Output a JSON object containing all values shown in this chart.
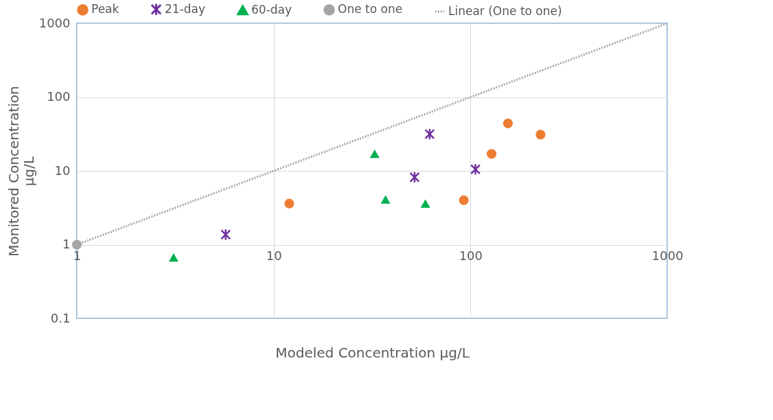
{
  "chart_data": {
    "type": "scatter",
    "xlabel": "Modeled Concentration µg/L",
    "ylabel": "Monitored Concentration µg/L",
    "log": "xy",
    "xlim": [
      1,
      1000
    ],
    "ylim": [
      0.1,
      1000
    ],
    "xticks": [
      1,
      10,
      100,
      1000
    ],
    "yticks": [
      0.1,
      1,
      10,
      100,
      1000
    ],
    "grid": true,
    "legend": "top",
    "series": [
      {
        "name": "Peak",
        "color": "#ed7d31",
        "marker": "circle",
        "x": [
          12.0,
          92.5,
          128,
          155,
          227
        ],
        "values": [
          3.6,
          4.0,
          17,
          44,
          31
        ]
      },
      {
        "name": "21-day",
        "color": "#7030a0",
        "marker": "cross",
        "x": [
          5.7,
          52,
          62,
          106
        ],
        "values": [
          1.37,
          8.2,
          31.5,
          10.5
        ]
      },
      {
        "name": "60-day",
        "color": "#00b050",
        "marker": "triangle",
        "x": [
          3.1,
          32.6,
          37,
          59
        ],
        "values": [
          0.67,
          17,
          4.1,
          3.6
        ]
      },
      {
        "name": "One to one",
        "color": "#a5a5a5",
        "marker": "circle",
        "x": [
          1
        ],
        "values": [
          1
        ]
      },
      {
        "name": "Linear (One to one)",
        "type": "line",
        "color": "#a5a5a5",
        "line_style": "dotted",
        "marker": "none",
        "x": [
          1,
          1000
        ],
        "values": [
          1,
          1000
        ]
      }
    ]
  }
}
